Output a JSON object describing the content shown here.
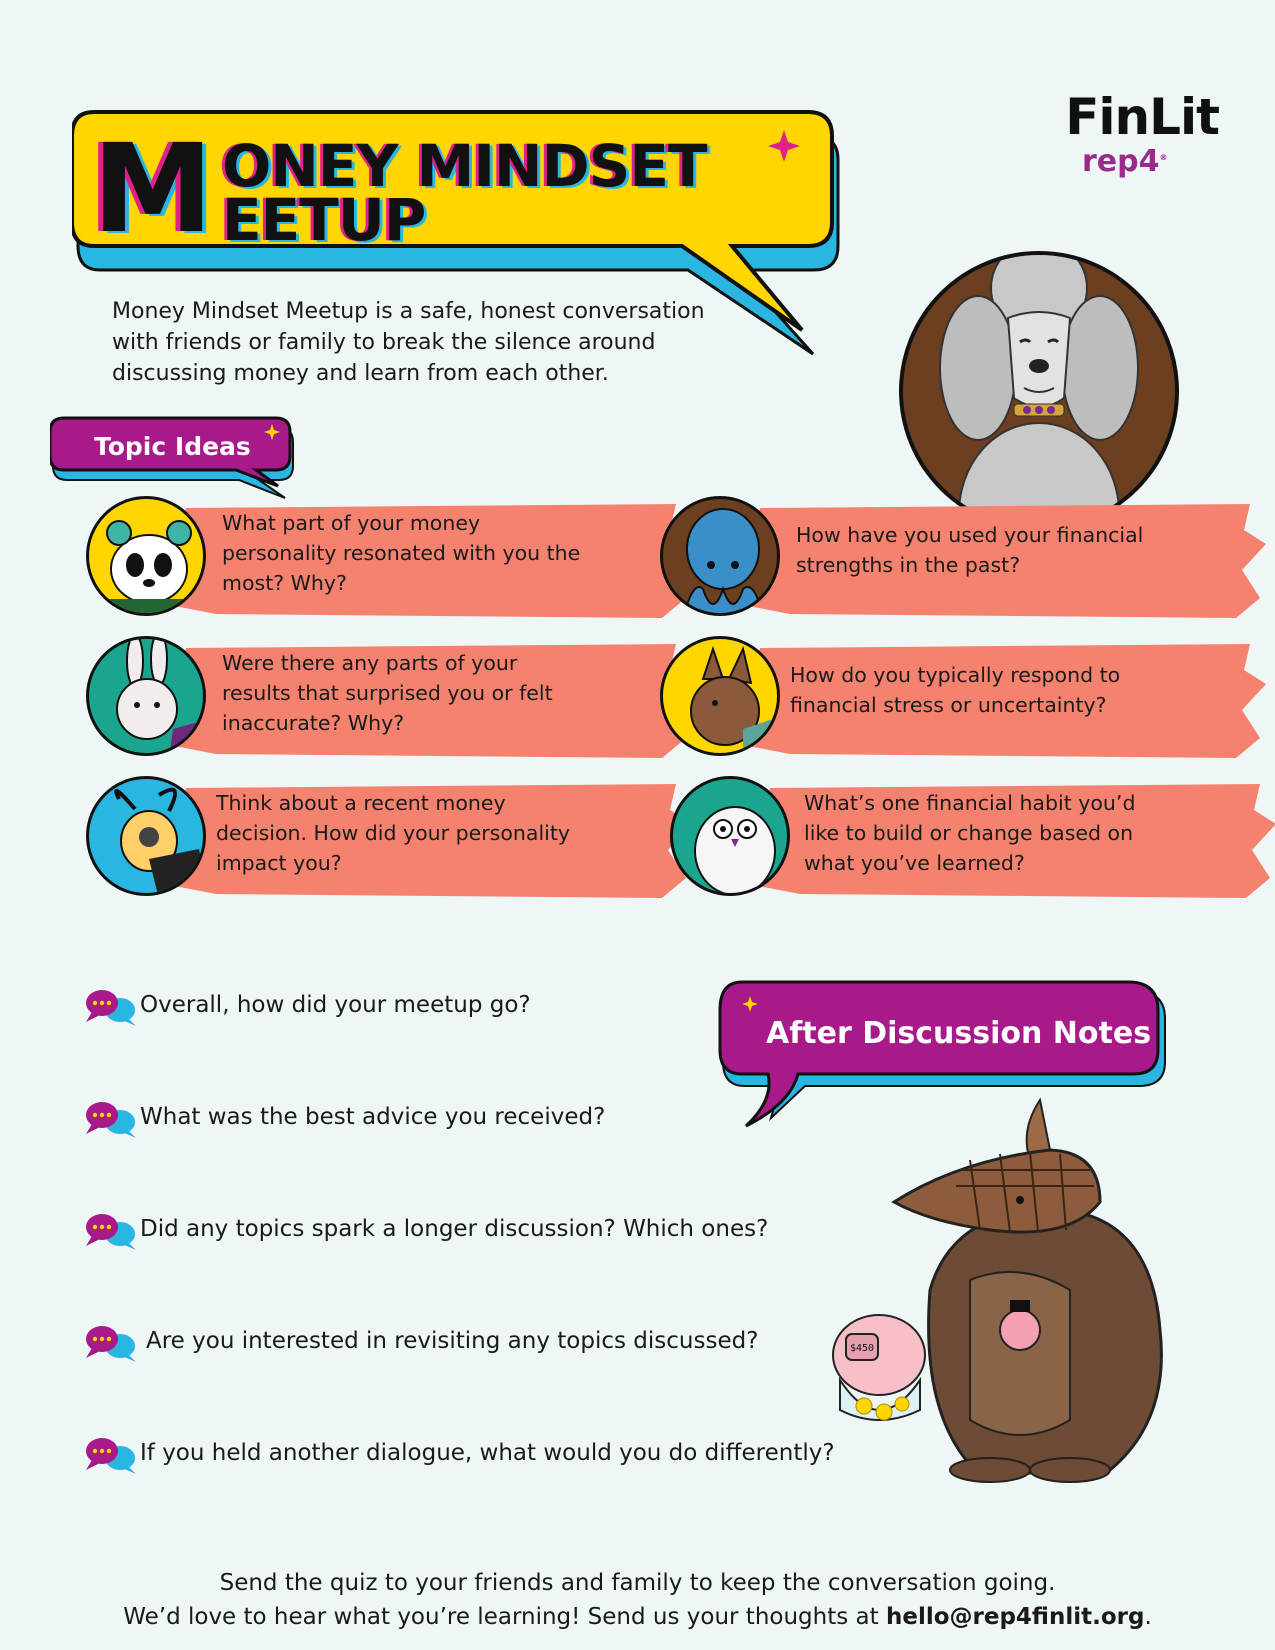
{
  "logo": {
    "name": "FinLit",
    "sub": "rep4"
  },
  "title": {
    "big_letter": "M",
    "line1": "ONEY MINDSET",
    "line2": "EETUP"
  },
  "intro": "Money Mindset Meetup is a safe, honest conversation with friends or family to break the silence around discussing money and learn from each other.",
  "topic_label": "Topic Ideas",
  "topics": [
    "What part of your money personality resonated with you the most? Why?",
    "How have you used your financial strengths in the past?",
    "Were there any parts of your results that surprised you or felt inaccurate? Why?",
    "How do you typically respond to financial stress or uncertainty?",
    "Think about a recent money decision. How did your personality impact you?",
    "What’s one financial habit you’d like to build or change based on what you’ve learned?"
  ],
  "after_label": "After Discussion Notes",
  "questions": [
    "Overall, how did your meetup go?",
    "What was the best advice you received?",
    "Did any topics spark a longer discussion? Which ones?",
    "Are you interested in revisiting any topics discussed?",
    "If you held another dialogue, what would you do differently?"
  ],
  "piggy_label": "$450",
  "footer": {
    "line1": "Send the quiz to your friends and family to keep the conversation going.",
    "line2_prefix": "We’d love to hear what you’re learning! Send us your thoughts at ",
    "email": "hello@rep4finlit.org",
    "line2_suffix": "."
  },
  "colors": {
    "background": "#eef7f6",
    "yellow": "#ffd600",
    "magenta": "#a8198a",
    "cyan": "#29b6e0",
    "salmon": "#f4826f",
    "pink": "#e0218a"
  }
}
